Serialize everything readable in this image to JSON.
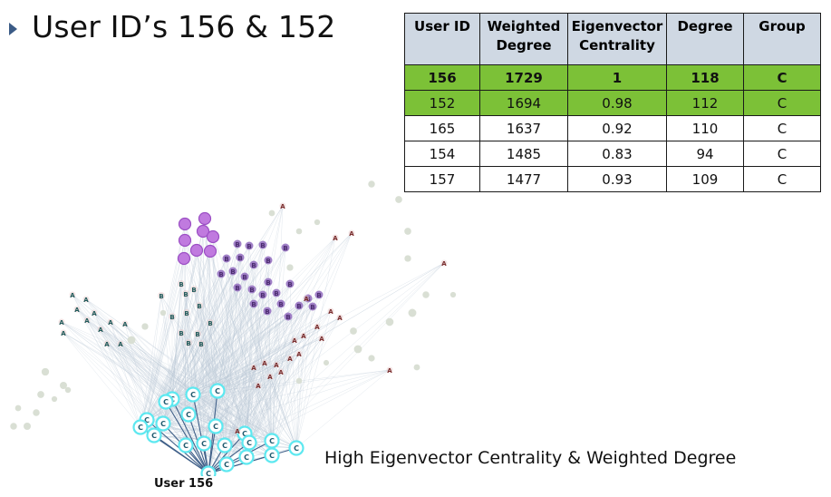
{
  "slide": {
    "title": "User ID’s 156 & 152",
    "caption": "High Eigenvector Centrality & Weighted Degree",
    "node_label": "User 156"
  },
  "table": {
    "headers": [
      "User ID",
      "Weighted Degree",
      "Eigenvector Centrality",
      "Degree",
      "Group"
    ],
    "rows": [
      [
        "156",
        "1729",
        "1",
        "118",
        "C"
      ],
      [
        "152",
        "1694",
        "0.98",
        "112",
        "C"
      ],
      [
        "165",
        "1637",
        "0.92",
        "110",
        "C"
      ],
      [
        "154",
        "1485",
        "0.83",
        "94",
        "C"
      ],
      [
        "157",
        "1477",
        "0.93",
        "109",
        "C"
      ]
    ],
    "highlight_color": "#7cc137",
    "header_color": "#cfd8e3"
  },
  "graph": {
    "groups": {
      "A": {
        "color": "#7a2e2e",
        "label": "A"
      },
      "A_teal": {
        "color": "#1f5a5a",
        "label": "A"
      },
      "B": {
        "color": "#4a2a6e",
        "label": "B"
      },
      "B_teal": {
        "color": "#1f5a5a",
        "label": "B"
      },
      "B_hl": {
        "color": "#c07adf",
        "label": "B"
      },
      "C": {
        "color": "#5de8f0",
        "label": "C"
      }
    }
  }
}
